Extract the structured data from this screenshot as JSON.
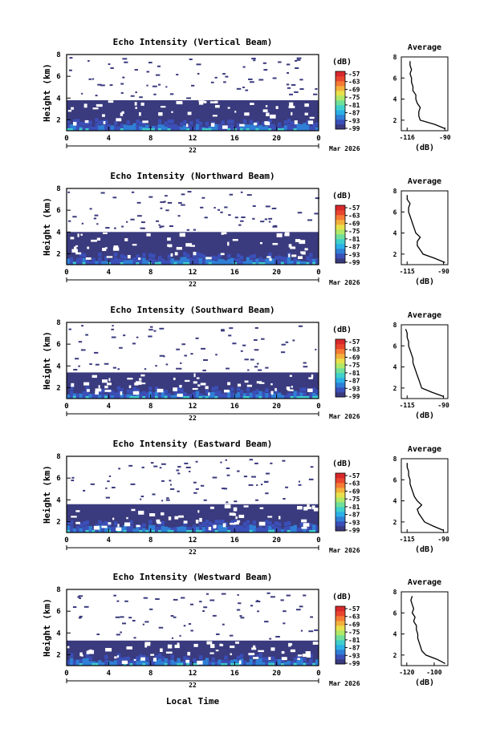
{
  "figure": {
    "date_label": "Mar 2026",
    "day_label": "22",
    "bottom_xlabel": "Local Time"
  },
  "colorbar": {
    "unit": "(dB)",
    "tick_labels": [
      "-57",
      "-63",
      "-69",
      "-75",
      "-81",
      "-87",
      "-93",
      "-99"
    ],
    "colors": [
      "#3a3a7e",
      "#3b4fb8",
      "#2f7fd6",
      "#2bb0e6",
      "#3fd0cc",
      "#6fe09a",
      "#b0e868",
      "#e8e04a",
      "#f3b03c",
      "#f57a34",
      "#e8452e",
      "#d8282c"
    ]
  },
  "chart_data": [
    {
      "type": "heatmap",
      "title": "Echo Intensity (Vertical Beam)",
      "ylabel": "Height (km)",
      "xlim": [
        0,
        24
      ],
      "ylim": [
        1,
        8
      ],
      "x_ticks": [
        "0",
        "4",
        "8",
        "12",
        "16",
        "20",
        "0"
      ],
      "y_ticks": [
        "2",
        "4",
        "6",
        "8"
      ],
      "echo_top_km": 3.8,
      "profile": {
        "title": "Average",
        "xlabel": "(dB)",
        "x_ticks": [
          "-116",
          "-90"
        ],
        "xlim": [
          -120,
          -88
        ],
        "ylim": [
          1,
          8
        ],
        "heights": [
          1.2,
          1.6,
          2.0,
          2.4,
          2.8,
          3.2,
          3.6,
          4.0,
          4.4,
          4.8,
          5.2,
          5.6,
          6.0,
          6.4,
          6.8,
          7.2,
          7.6
        ],
        "values": [
          -90,
          -97,
          -107,
          -108,
          -108,
          -107,
          -109,
          -110,
          -110,
          -112,
          -112,
          -113,
          -113,
          -114,
          -113,
          -114,
          -114
        ]
      }
    },
    {
      "type": "heatmap",
      "title": "Echo Intensity (Northward Beam)",
      "ylabel": "Height (km)",
      "xlim": [
        0,
        24
      ],
      "ylim": [
        1,
        8
      ],
      "x_ticks": [
        "0",
        "4",
        "8",
        "12",
        "16",
        "20",
        "0"
      ],
      "y_ticks": [
        "2",
        "4",
        "6",
        "8"
      ],
      "echo_top_km": 4.0,
      "profile": {
        "title": "Average",
        "xlabel": "(dB)",
        "x_ticks": [
          "-115",
          "-90"
        ],
        "xlim": [
          -119,
          -87
        ],
        "ylim": [
          1,
          8
        ],
        "heights": [
          1.2,
          1.6,
          2.0,
          2.4,
          2.8,
          3.2,
          3.6,
          4.0,
          4.4,
          4.8,
          5.2,
          5.6,
          6.0,
          6.4,
          6.8,
          7.2,
          7.6
        ],
        "values": [
          -89,
          -96,
          -104,
          -106,
          -108,
          -108,
          -106,
          -109,
          -110,
          -111,
          -112,
          -113,
          -114,
          -114,
          -113,
          -115,
          -115
        ]
      }
    },
    {
      "type": "heatmap",
      "title": "Echo Intensity (Southward Beam)",
      "ylabel": "Height (km)",
      "xlim": [
        0,
        24
      ],
      "ylim": [
        1,
        8
      ],
      "x_ticks": [
        "0",
        "4",
        "8",
        "12",
        "16",
        "20",
        "0"
      ],
      "y_ticks": [
        "2",
        "4",
        "6",
        "8"
      ],
      "echo_top_km": 3.4,
      "profile": {
        "title": "Average",
        "xlabel": "(dB)",
        "x_ticks": [
          "-115",
          "-90"
        ],
        "xlim": [
          -119,
          -87
        ],
        "ylim": [
          1,
          8
        ],
        "heights": [
          1.2,
          1.6,
          2.0,
          2.4,
          2.8,
          3.2,
          3.6,
          4.0,
          4.4,
          4.8,
          5.2,
          5.6,
          6.0,
          6.4,
          6.8,
          7.2,
          7.6
        ],
        "values": [
          -90,
          -98,
          -105,
          -106,
          -107,
          -108,
          -109,
          -110,
          -111,
          -111,
          -112,
          -113,
          -114,
          -114,
          -115,
          -115,
          -116
        ]
      }
    },
    {
      "type": "heatmap",
      "title": "Echo Intensity (Eastward Beam)",
      "ylabel": "Height (km)",
      "xlim": [
        0,
        24
      ],
      "ylim": [
        1,
        8
      ],
      "x_ticks": [
        "0",
        "4",
        "8",
        "12",
        "16",
        "20",
        "0"
      ],
      "y_ticks": [
        "2",
        "4",
        "6",
        "8"
      ],
      "echo_top_km": 3.6,
      "profile": {
        "title": "Average",
        "xlabel": "(dB)",
        "x_ticks": [
          "-115",
          "-90"
        ],
        "xlim": [
          -119,
          -87
        ],
        "ylim": [
          1,
          8
        ],
        "heights": [
          1.2,
          1.6,
          2.0,
          2.4,
          2.8,
          3.2,
          3.6,
          4.0,
          4.4,
          4.8,
          5.2,
          5.6,
          6.0,
          6.4,
          6.8,
          7.2,
          7.6
        ],
        "values": [
          -90,
          -97,
          -103,
          -105,
          -107,
          -108,
          -105,
          -108,
          -110,
          -111,
          -112,
          -113,
          -113,
          -114,
          -114,
          -115,
          -115
        ]
      }
    },
    {
      "type": "heatmap",
      "title": "Echo Intensity (Westward Beam)",
      "ylabel": "Height (km)",
      "xlim": [
        0,
        24
      ],
      "ylim": [
        1,
        8
      ],
      "x_ticks": [
        "0",
        "4",
        "8",
        "12",
        "16",
        "20",
        "0"
      ],
      "y_ticks": [
        "2",
        "4",
        "6",
        "8"
      ],
      "echo_top_km": 3.3,
      "profile": {
        "title": "Average",
        "xlabel": "(dB)",
        "x_ticks": [
          "-120",
          "-100"
        ],
        "xlim": [
          -124,
          -90
        ],
        "ylim": [
          1,
          8
        ],
        "heights": [
          1.2,
          1.6,
          2.0,
          2.4,
          2.8,
          3.2,
          3.6,
          4.0,
          4.4,
          4.8,
          5.2,
          5.6,
          6.0,
          6.4,
          6.8,
          7.2,
          7.6
        ],
        "values": [
          -92,
          -98,
          -106,
          -109,
          -110,
          -111,
          -112,
          -112,
          -113,
          -113,
          -115,
          -114,
          -116,
          -115,
          -116,
          -117,
          -116
        ]
      }
    }
  ]
}
